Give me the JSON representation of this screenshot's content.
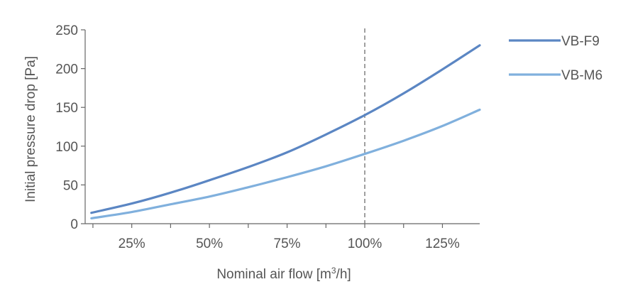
{
  "chart_data": {
    "type": "line",
    "title": "",
    "xlabel": "Nominal air flow [m",
    "xlabel_sup": "3",
    "xlabel_suffix": "/h]",
    "ylabel": "Initial pressure drop [Pa]",
    "xlim": [
      10,
      137
    ],
    "ylim": [
      0,
      250
    ],
    "x_ticks": [
      25,
      50,
      75,
      100,
      125
    ],
    "x_tick_labels": [
      "25%",
      "50%",
      "75%",
      "100%",
      "125%"
    ],
    "y_ticks": [
      0,
      50,
      100,
      150,
      200,
      250
    ],
    "y_tick_labels": [
      "0",
      "50",
      "100",
      "150",
      "200",
      "250"
    ],
    "reference_line": {
      "x": 100,
      "style": "dashed"
    },
    "legend_position": "right",
    "grid": false,
    "series": [
      {
        "name": "VB-F9",
        "color": "#5b86c3",
        "x": [
          12,
          25,
          37.5,
          50,
          62.5,
          75,
          87.5,
          100,
          112.5,
          125,
          137
        ],
        "y": [
          14,
          26,
          40,
          56,
          73,
          92,
          115,
          140,
          168,
          199,
          230
        ]
      },
      {
        "name": "VB-M6",
        "color": "#80b0dd",
        "x": [
          12,
          25,
          37.5,
          50,
          62.5,
          75,
          87.5,
          100,
          112.5,
          125,
          137
        ],
        "y": [
          7,
          15,
          25,
          35,
          47,
          60,
          74,
          90,
          107,
          126,
          147
        ]
      }
    ]
  }
}
